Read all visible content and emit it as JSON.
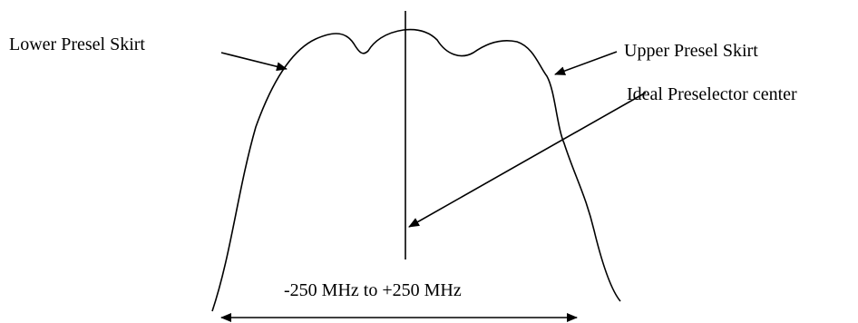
{
  "labels": {
    "lower_skirt": "Lower Presel Skirt",
    "upper_skirt": "Upper Presel Skirt",
    "ideal_center": "Ideal Preselector center",
    "span": "-250 MHz to +250 MHz"
  },
  "colors": {
    "stroke": "#000000",
    "background": "#ffffff"
  }
}
